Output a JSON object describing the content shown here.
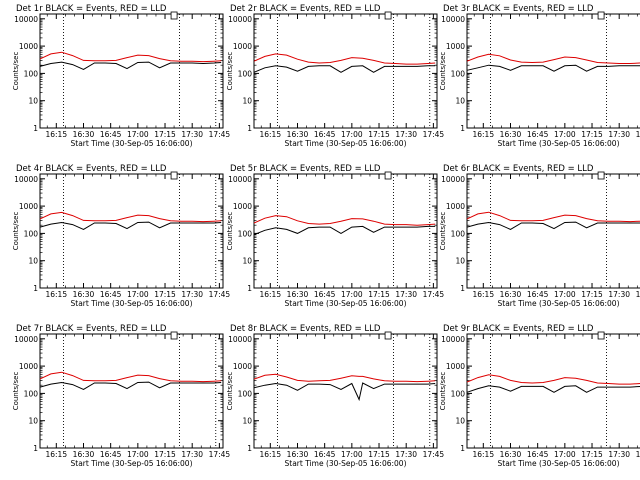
{
  "colors": {
    "events": "#000000",
    "lld": "#dd0000",
    "axes": "#000000",
    "background": "#ffffff"
  },
  "shared": {
    "ylabel": "Counts/sec",
    "xlabel": "Start Time (30-Sep-05 16:06:00)",
    "x_ticks": [
      "16:15",
      "16:30",
      "16:45",
      "17:00",
      "17:15",
      "17:30",
      "17:45"
    ],
    "y_ticks": [
      "1",
      "10",
      "100",
      "1000",
      "10000"
    ],
    "xlim": [
      "16:06",
      "17:47"
    ],
    "ylim": [
      1,
      15000
    ],
    "y_scale": "log",
    "vlines": [
      "16:19",
      "17:23",
      "17:43"
    ]
  },
  "chart_data": [
    {
      "type": "line",
      "title": "Det 1r BLACK = Events, RED = LLD",
      "x": [
        "16:06",
        "16:12",
        "16:18",
        "16:24",
        "16:30",
        "16:36",
        "16:42",
        "16:48",
        "16:54",
        "17:00",
        "17:06",
        "17:12",
        "17:18",
        "17:24",
        "17:30",
        "17:36",
        "17:42",
        "17:46"
      ],
      "series": [
        {
          "name": "Events",
          "values": [
            180,
            230,
            260,
            210,
            140,
            240,
            240,
            230,
            150,
            250,
            260,
            160,
            240,
            240,
            240,
            230,
            240,
            250
          ]
        },
        {
          "name": "LLD",
          "values": [
            340,
            520,
            600,
            450,
            300,
            290,
            290,
            300,
            380,
            470,
            450,
            350,
            290,
            280,
            280,
            270,
            280,
            290
          ]
        }
      ]
    },
    {
      "type": "line",
      "title": "Det 2r BLACK = Events, RED = LLD",
      "x": [
        "16:06",
        "16:12",
        "16:18",
        "16:24",
        "16:30",
        "16:36",
        "16:42",
        "16:48",
        "16:54",
        "17:00",
        "17:06",
        "17:12",
        "17:18",
        "17:24",
        "17:30",
        "17:36",
        "17:42",
        "17:46"
      ],
      "series": [
        {
          "name": "Events",
          "values": [
            110,
            160,
            190,
            170,
            120,
            180,
            190,
            190,
            110,
            180,
            190,
            110,
            180,
            180,
            180,
            180,
            190,
            190
          ]
        },
        {
          "name": "LLD",
          "values": [
            280,
            420,
            520,
            470,
            330,
            260,
            240,
            250,
            300,
            380,
            360,
            300,
            240,
            230,
            220,
            220,
            230,
            240
          ]
        }
      ]
    },
    {
      "type": "line",
      "title": "Det 3r BLACK = Events, RED = LLD",
      "x": [
        "16:06",
        "16:12",
        "16:18",
        "16:24",
        "16:30",
        "16:36",
        "16:42",
        "16:48",
        "16:54",
        "17:00",
        "17:06",
        "17:12",
        "17:18",
        "17:24",
        "17:30",
        "17:36",
        "17:42",
        "17:46"
      ],
      "series": [
        {
          "name": "Events",
          "values": [
            130,
            160,
            200,
            180,
            130,
            190,
            190,
            190,
            120,
            190,
            200,
            120,
            180,
            180,
            190,
            190,
            190,
            190
          ]
        },
        {
          "name": "LLD",
          "values": [
            280,
            400,
            500,
            440,
            310,
            260,
            250,
            260,
            320,
            400,
            380,
            310,
            250,
            240,
            230,
            230,
            240,
            250
          ]
        }
      ]
    },
    {
      "type": "line",
      "title": "Det 4r BLACK = Events, RED = LLD",
      "x": [
        "16:06",
        "16:12",
        "16:18",
        "16:24",
        "16:30",
        "16:36",
        "16:42",
        "16:48",
        "16:54",
        "17:00",
        "17:06",
        "17:12",
        "17:18",
        "17:24",
        "17:30",
        "17:36",
        "17:42",
        "17:46"
      ],
      "series": [
        {
          "name": "Events",
          "values": [
            170,
            220,
            250,
            210,
            140,
            240,
            240,
            230,
            150,
            250,
            260,
            160,
            240,
            240,
            240,
            240,
            240,
            250
          ]
        },
        {
          "name": "LLD",
          "values": [
            340,
            520,
            590,
            450,
            300,
            290,
            290,
            300,
            380,
            470,
            450,
            350,
            290,
            280,
            280,
            270,
            280,
            290
          ]
        }
      ]
    },
    {
      "type": "line",
      "title": "Det 5r BLACK = Events, RED = LLD",
      "x": [
        "16:06",
        "16:12",
        "16:18",
        "16:24",
        "16:30",
        "16:36",
        "16:42",
        "16:48",
        "16:54",
        "17:00",
        "17:06",
        "17:12",
        "17:18",
        "17:24",
        "17:30",
        "17:36",
        "17:42",
        "17:46"
      ],
      "series": [
        {
          "name": "Events",
          "values": [
            90,
            130,
            160,
            140,
            100,
            160,
            170,
            170,
            100,
            170,
            180,
            110,
            170,
            170,
            170,
            170,
            180,
            180
          ]
        },
        {
          "name": "LLD",
          "values": [
            240,
            360,
            450,
            410,
            290,
            230,
            220,
            230,
            280,
            350,
            340,
            280,
            220,
            210,
            210,
            200,
            210,
            220
          ]
        }
      ]
    },
    {
      "type": "line",
      "title": "Det 6r BLACK = Events, RED = LLD",
      "x": [
        "16:06",
        "16:12",
        "16:18",
        "16:24",
        "16:30",
        "16:36",
        "16:42",
        "16:48",
        "16:54",
        "17:00",
        "17:06",
        "17:12",
        "17:18",
        "17:24",
        "17:30",
        "17:36",
        "17:42",
        "17:46"
      ],
      "series": [
        {
          "name": "Events",
          "values": [
            170,
            220,
            250,
            210,
            140,
            240,
            240,
            230,
            150,
            250,
            260,
            160,
            240,
            240,
            240,
            240,
            240,
            250
          ]
        },
        {
          "name": "LLD",
          "values": [
            340,
            520,
            600,
            450,
            300,
            290,
            290,
            300,
            380,
            470,
            450,
            350,
            290,
            280,
            280,
            270,
            280,
            290
          ]
        }
      ]
    },
    {
      "type": "line",
      "title": "Det 7r BLACK = Events, RED = LLD",
      "x": [
        "16:06",
        "16:12",
        "16:18",
        "16:24",
        "16:30",
        "16:36",
        "16:42",
        "16:48",
        "16:54",
        "17:00",
        "17:06",
        "17:12",
        "17:18",
        "17:24",
        "17:30",
        "17:36",
        "17:42",
        "17:46"
      ],
      "series": [
        {
          "name": "Events",
          "values": [
            170,
            220,
            250,
            210,
            140,
            240,
            240,
            230,
            150,
            250,
            260,
            160,
            240,
            240,
            240,
            240,
            240,
            250
          ]
        },
        {
          "name": "LLD",
          "values": [
            340,
            520,
            600,
            450,
            300,
            290,
            290,
            300,
            380,
            470,
            450,
            350,
            290,
            280,
            280,
            270,
            280,
            290
          ]
        }
      ]
    },
    {
      "type": "line",
      "title": "Det 8r BLACK = Events, RED = LLD",
      "x": [
        "16:06",
        "16:12",
        "16:18",
        "16:24",
        "16:30",
        "16:36",
        "16:42",
        "16:48",
        "16:54",
        "17:00",
        "17:04",
        "17:06",
        "17:12",
        "17:18",
        "17:24",
        "17:30",
        "17:36",
        "17:42",
        "17:46"
      ],
      "series": [
        {
          "name": "Events",
          "values": [
            160,
            200,
            230,
            200,
            130,
            220,
            220,
            210,
            140,
            230,
            60,
            240,
            150,
            220,
            220,
            220,
            220,
            220,
            230
          ]
        },
        {
          "name": "LLD",
          "values": [
            330,
            460,
            500,
            400,
            300,
            280,
            290,
            300,
            360,
            440,
            420,
            420,
            340,
            290,
            280,
            280,
            270,
            280,
            290
          ]
        }
      ]
    },
    {
      "type": "line",
      "title": "Det 9r BLACK = Events, RED = LLD",
      "x": [
        "16:06",
        "16:12",
        "16:18",
        "16:24",
        "16:30",
        "16:36",
        "16:42",
        "16:48",
        "16:54",
        "17:00",
        "17:06",
        "17:12",
        "17:18",
        "17:24",
        "17:30",
        "17:36",
        "17:42",
        "17:46"
      ],
      "series": [
        {
          "name": "Events",
          "values": [
            110,
            150,
            190,
            170,
            120,
            180,
            180,
            180,
            110,
            180,
            190,
            110,
            170,
            170,
            170,
            170,
            180,
            180
          ]
        },
        {
          "name": "LLD",
          "values": [
            260,
            380,
            480,
            420,
            300,
            250,
            240,
            250,
            300,
            380,
            360,
            300,
            240,
            230,
            220,
            220,
            230,
            240
          ]
        }
      ]
    }
  ]
}
